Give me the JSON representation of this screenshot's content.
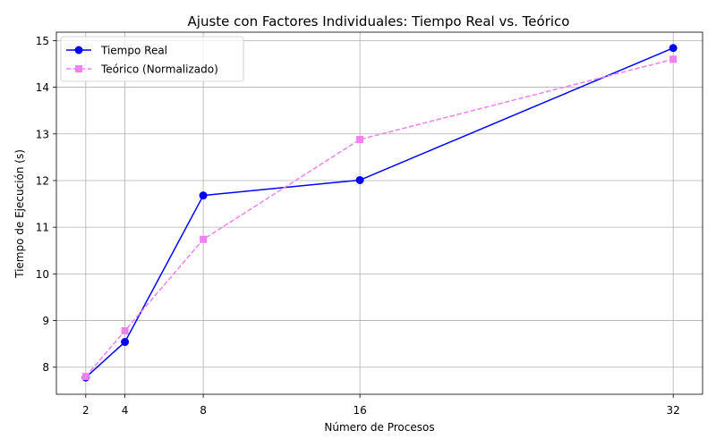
{
  "chart_data": {
    "type": "line",
    "title": "Ajuste con Factores Individuales: Tiempo Real vs. Teórico",
    "xlabel": "Número de Procesos",
    "ylabel": "Tiempo de Ejecución (s)",
    "x": [
      2,
      4,
      8,
      16,
      32
    ],
    "x_ticks": [
      "2",
      "4",
      "8",
      "16",
      "32"
    ],
    "y_ticks": [
      "8",
      "9",
      "10",
      "11",
      "12",
      "13",
      "14",
      "15"
    ],
    "xlim": [
      0.5,
      33.5
    ],
    "ylim": [
      7.42,
      15.18
    ],
    "grid": true,
    "legend_position": "upper-left",
    "series": [
      {
        "name": "Tiempo Real",
        "values": [
          7.78,
          8.54,
          11.68,
          12.01,
          14.84
        ],
        "color": "#0000ff",
        "marker": "circle",
        "line_style": "solid"
      },
      {
        "name": "Teórico (Normalizado)",
        "values": [
          7.8,
          8.78,
          10.74,
          12.88,
          14.6
        ],
        "color": "#ee82ee",
        "marker": "square",
        "line_style": "dashed"
      }
    ]
  }
}
